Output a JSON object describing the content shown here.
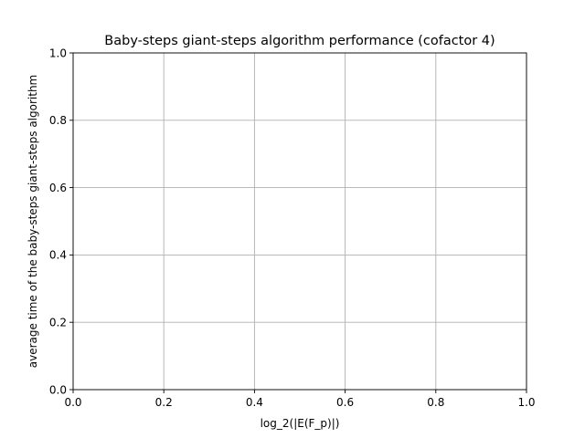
{
  "chart_data": {
    "type": "line",
    "title": "Baby-steps giant-steps algorithm performance (cofactor 4)",
    "xlabel": "log_2(|E(F_p)|)",
    "ylabel": "average time of the baby-steps giant-steps algorithm",
    "xlim": [
      0.0,
      1.0
    ],
    "ylim": [
      0.0,
      1.0
    ],
    "x_ticks": [
      0.0,
      0.2,
      0.4,
      0.6,
      0.8,
      1.0
    ],
    "y_ticks": [
      0.0,
      0.2,
      0.4,
      0.6,
      0.8,
      1.0
    ],
    "x_tick_labels": [
      "0.0",
      "0.2",
      "0.4",
      "0.6",
      "0.8",
      "1.0"
    ],
    "y_tick_labels": [
      "0.0",
      "0.2",
      "0.4",
      "0.6",
      "0.8",
      "1.0"
    ],
    "grid": true,
    "series": []
  }
}
